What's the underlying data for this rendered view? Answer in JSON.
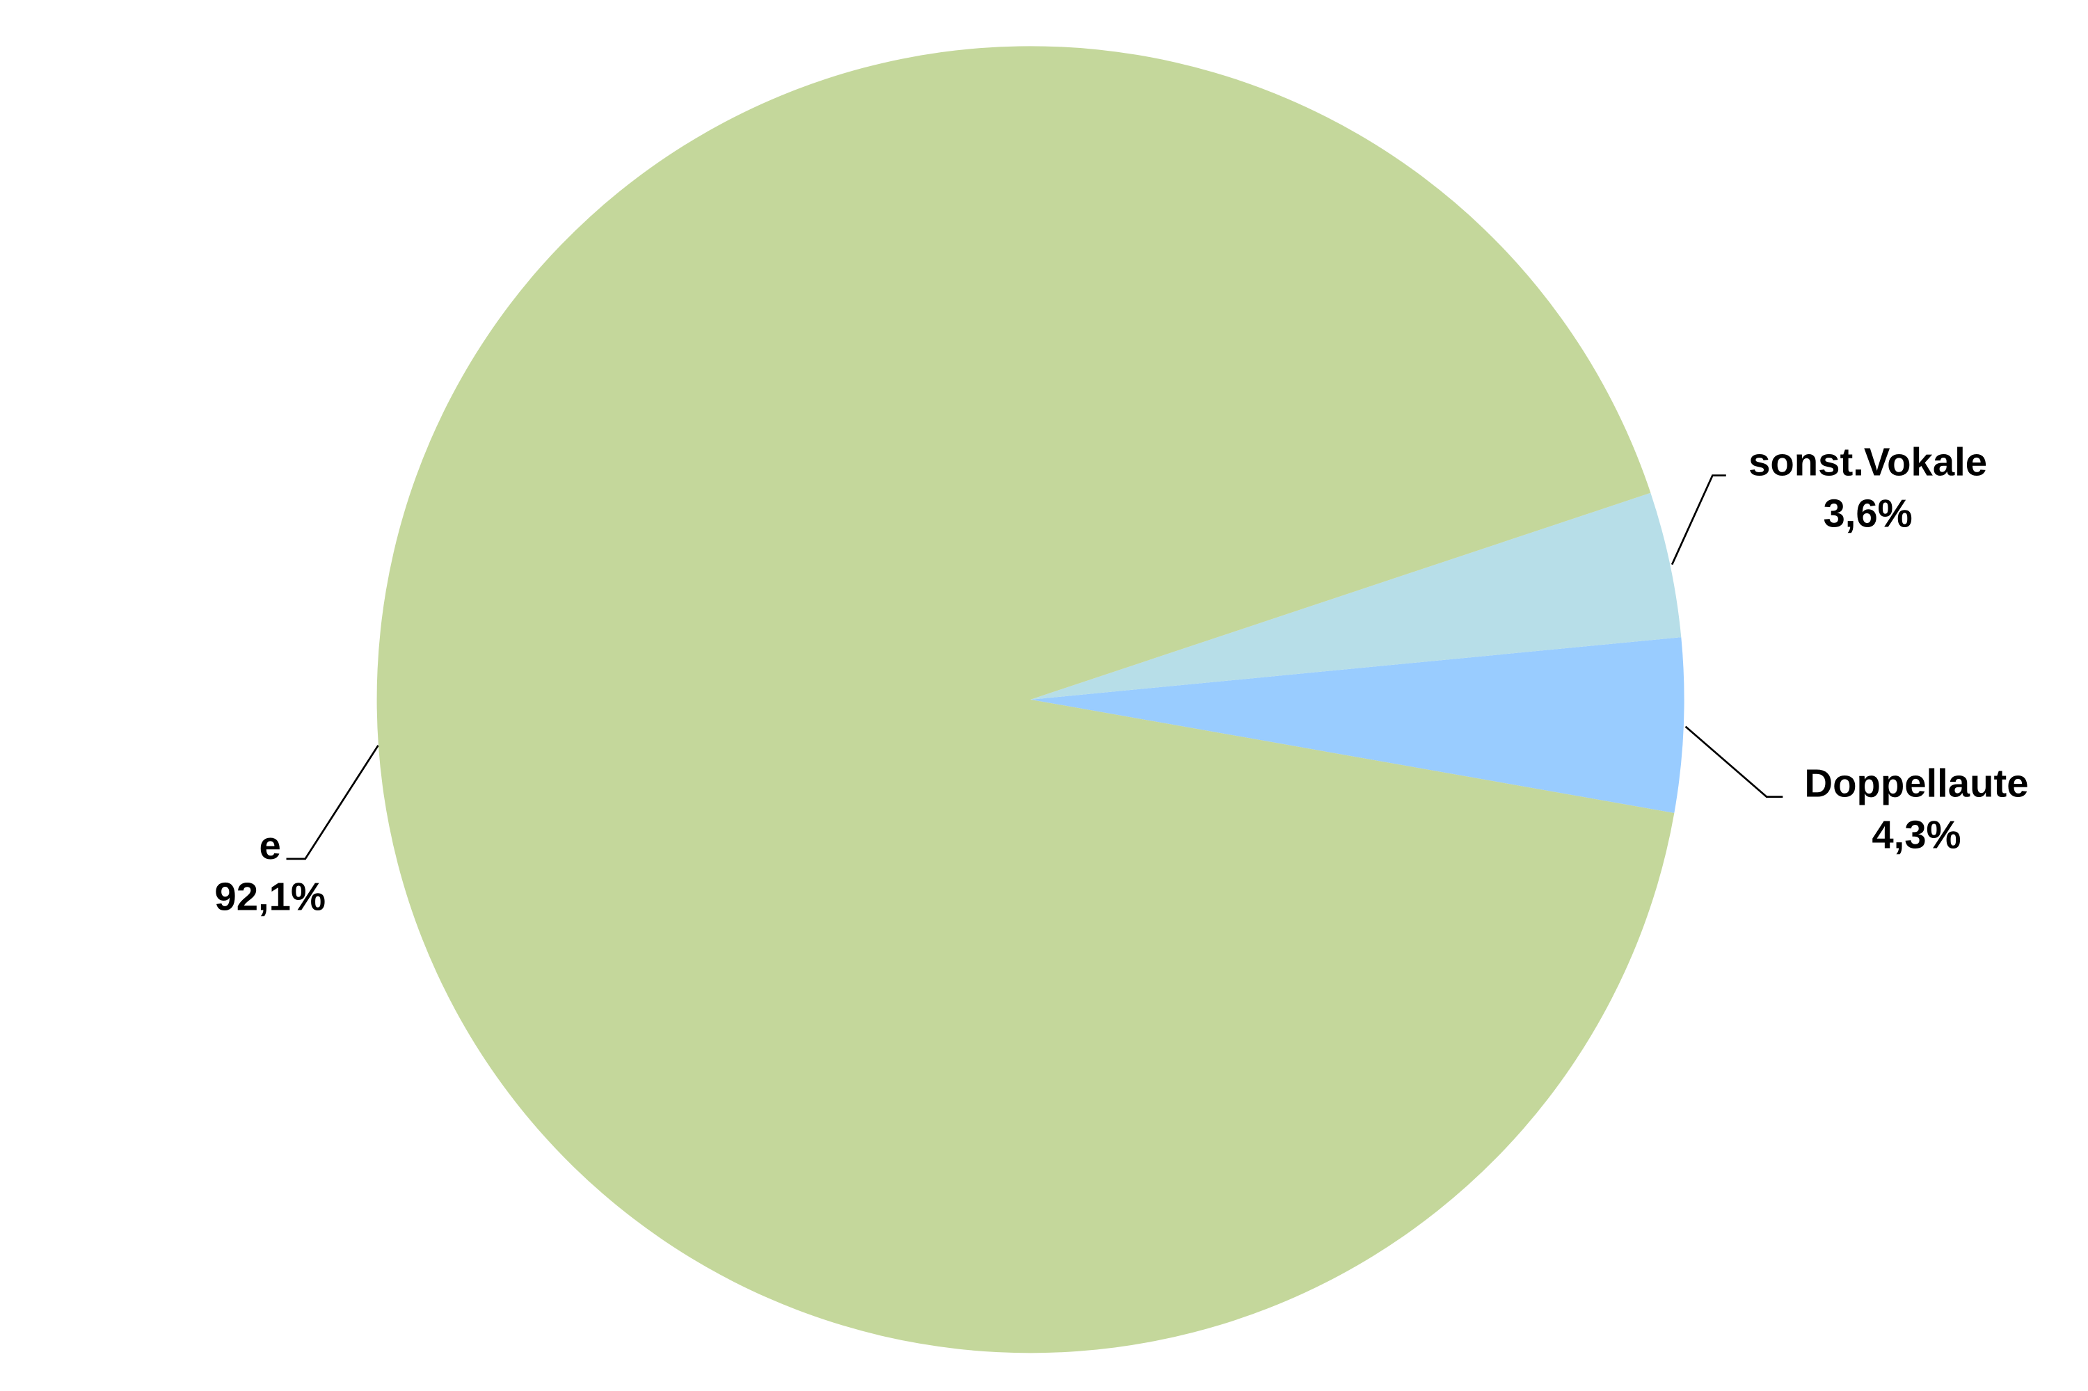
{
  "chart_data": {
    "type": "pie",
    "title": "",
    "slices": [
      {
        "label": "e",
        "value": 92.1,
        "display": "92,1%",
        "color": "#C4D79B"
      },
      {
        "label": "sonst.Vokale",
        "value": 3.6,
        "display": "3,6%",
        "color": "#B7DEE8"
      },
      {
        "label": "Doppellaute",
        "value": 4.3,
        "display": "4,3%",
        "color": "#99CCFF"
      }
    ],
    "data_labels": "label and percentage, outside with leader lines"
  }
}
